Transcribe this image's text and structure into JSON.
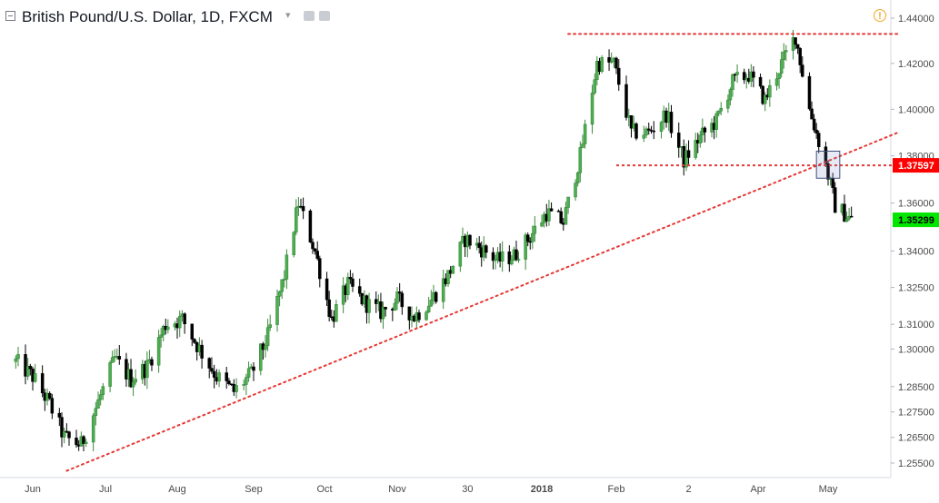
{
  "header": {
    "title": "British Pound/U.S. Dollar, 1D, FXCM",
    "caret": "▾",
    "alert_symbol": "!"
  },
  "price_labels": {
    "resistance_level": "1.37597",
    "current_price": "1.35299"
  },
  "colors": {
    "up": "#26a69a",
    "up_fill": "#4caf50",
    "down": "#000000",
    "trendline": "#e53935",
    "level_badge": "#ff0000",
    "current_badge": "#00e600"
  },
  "chart_data": {
    "type": "candlestick",
    "symbol": "GBPUSD",
    "timeframe": "1D",
    "y_ticks": [
      "1.44000",
      "1.42000",
      "1.40000",
      "1.38000",
      "1.36000",
      "1.34000",
      "1.32500",
      "1.31000",
      "1.30000",
      "1.28500",
      "1.27500",
      "1.26500",
      "1.25500"
    ],
    "x_ticks": [
      "Jun",
      "Jul",
      "Aug",
      "Sep",
      "Oct",
      "Nov",
      "30",
      "2018",
      "Feb",
      "2",
      "Apr",
      "May"
    ],
    "highlighted_x_tick": "2018",
    "y_scale": "log",
    "annotations": [
      {
        "kind": "dotted_line",
        "name": "resistance-top",
        "from": [
          "2018-01-12",
          1.433
        ],
        "to": [
          "2018-05-31",
          1.433
        ]
      },
      {
        "kind": "dotted_line",
        "name": "rising-trendline",
        "from": [
          "2017-06-15",
          1.252
        ],
        "to": [
          "2018-05-31",
          1.39
        ]
      },
      {
        "kind": "dashed_line",
        "name": "support-level",
        "from": [
          "2018-02-01",
          1.37597
        ],
        "to": [
          "2018-05-31",
          1.37597
        ]
      },
      {
        "kind": "rectangle",
        "name": "breakdown-box",
        "from": [
          "2018-04-26",
          1.382
        ],
        "to": [
          "2018-05-06",
          1.3705
        ]
      }
    ],
    "anchors": [
      [
        "2017-05-25",
        1.295
      ],
      [
        "2017-06-01",
        1.289
      ],
      [
        "2017-06-08",
        1.278
      ],
      [
        "2017-06-14",
        1.265
      ],
      [
        "2017-06-21",
        1.262
      ],
      [
        "2017-06-28",
        1.279
      ],
      [
        "2017-07-05",
        1.296
      ],
      [
        "2017-07-12",
        1.288
      ],
      [
        "2017-07-19",
        1.293
      ],
      [
        "2017-07-27",
        1.31
      ],
      [
        "2017-08-03",
        1.312
      ],
      [
        "2017-08-10",
        1.3
      ],
      [
        "2017-08-17",
        1.289
      ],
      [
        "2017-08-24",
        1.283
      ],
      [
        "2017-08-31",
        1.29
      ],
      [
        "2017-09-07",
        1.305
      ],
      [
        "2017-09-14",
        1.33
      ],
      [
        "2017-09-20",
        1.36
      ],
      [
        "2017-09-27",
        1.34
      ],
      [
        "2017-10-04",
        1.312
      ],
      [
        "2017-10-11",
        1.326
      ],
      [
        "2017-10-18",
        1.319
      ],
      [
        "2017-10-25",
        1.315
      ],
      [
        "2017-11-01",
        1.32
      ],
      [
        "2017-11-08",
        1.313
      ],
      [
        "2017-11-15",
        1.32
      ],
      [
        "2017-11-22",
        1.33
      ],
      [
        "2017-11-29",
        1.345
      ],
      [
        "2017-12-06",
        1.341
      ],
      [
        "2017-12-13",
        1.336
      ],
      [
        "2017-12-20",
        1.338
      ],
      [
        "2017-12-27",
        1.346
      ],
      [
        "2018-01-03",
        1.356
      ],
      [
        "2018-01-10",
        1.352
      ],
      [
        "2018-01-17",
        1.38
      ],
      [
        "2018-01-24",
        1.42
      ],
      [
        "2018-01-31",
        1.42
      ],
      [
        "2018-02-07",
        1.39
      ],
      [
        "2018-02-14",
        1.39
      ],
      [
        "2018-02-21",
        1.398
      ],
      [
        "2018-02-28",
        1.378
      ],
      [
        "2018-03-07",
        1.388
      ],
      [
        "2018-03-14",
        1.395
      ],
      [
        "2018-03-21",
        1.412
      ],
      [
        "2018-03-28",
        1.415
      ],
      [
        "2018-04-04",
        1.404
      ],
      [
        "2018-04-11",
        1.42
      ],
      [
        "2018-04-17",
        1.432
      ],
      [
        "2018-04-23",
        1.4
      ],
      [
        "2018-04-30",
        1.376
      ],
      [
        "2018-05-04",
        1.359
      ],
      [
        "2018-05-11",
        1.353
      ]
    ]
  }
}
